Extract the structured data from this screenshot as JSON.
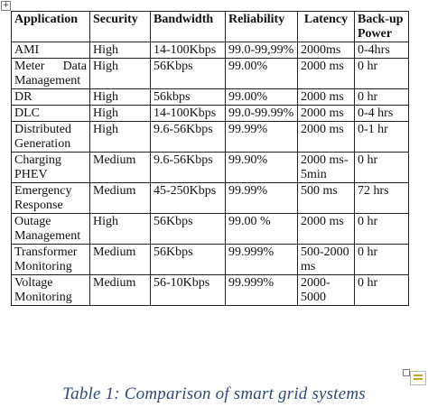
{
  "table": {
    "headers": [
      "Application",
      "Security",
      "Bandwidth",
      "Reliability",
      "Latency",
      "Back-up Power"
    ],
    "rows": [
      [
        "AMI",
        "High",
        "14-100Kbps",
        "99.0-99,99%",
        "2000ms",
        "0-4hrs"
      ],
      [
        "Meter Data Management",
        "High",
        "56Kbps",
        "99.00%",
        "2000 ms",
        "0 hr"
      ],
      [
        "DR",
        "High",
        "56kbps",
        "99.00%",
        "2000 ms",
        "0 hr"
      ],
      [
        "DLC",
        "High",
        "14-100Kbps",
        "99.0-99.99%",
        "2000 ms",
        "0-4 hrs"
      ],
      [
        "Distributed Generation",
        "High",
        "9.6-56Kbps",
        "99.99%",
        "2000 ms",
        "0-1 hr"
      ],
      [
        "Charging PHEV",
        "Medium",
        "9.6-56Kbps",
        "99.90%",
        "2000 ms-5min",
        "0 hr"
      ],
      [
        "Emergency Response",
        "Medium",
        "45-250Kbps",
        "99.99%",
        "500 ms",
        "72 hrs"
      ],
      [
        "Outage Management",
        "High",
        "56Kbps",
        "99.00 %",
        "2000 ms",
        "0 hr"
      ],
      [
        "Transformer Monitoring",
        "Medium",
        "56Kbps",
        "99.999%",
        "500-2000 ms",
        "0 hr"
      ],
      [
        "Voltage Monitoring",
        "Medium",
        "56-10Kbps",
        "99.999%",
        "2000-5000",
        "0 hr"
      ]
    ]
  },
  "caption": "Table 1: Comparison of smart grid systems",
  "icons": {
    "move_handle": "move-handle-icon",
    "resize_handle": "resize-handle-icon",
    "layout_options": "layout-options-icon"
  }
}
